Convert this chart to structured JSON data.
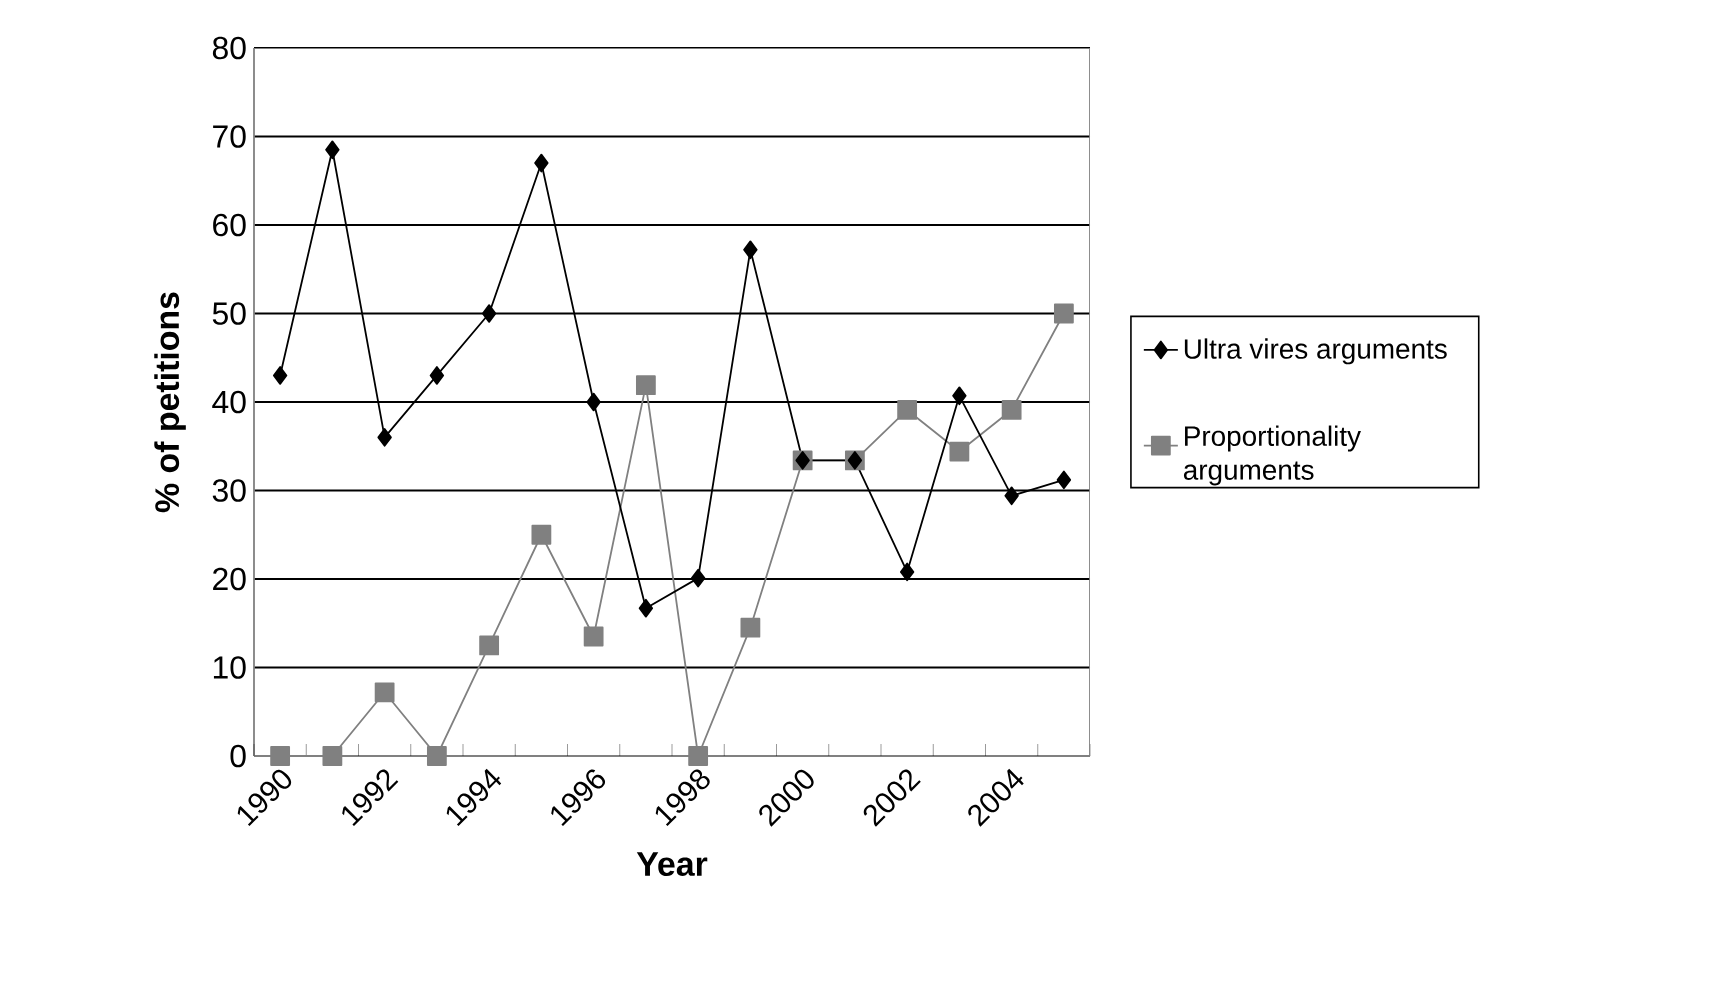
{
  "chart_data": {
    "type": "line",
    "xlabel": "Year",
    "ylabel": "% of petitions",
    "categories": [
      "1990",
      null,
      "1992",
      null,
      "1994",
      null,
      "1996",
      null,
      "1998",
      null,
      "2000",
      null,
      "2002",
      null,
      "2004",
      null
    ],
    "series": [
      {
        "name": "Ultra vires arguments",
        "color": "#000000",
        "marker": "diamond",
        "values": [
          43,
          68.5,
          36,
          43,
          50,
          67,
          40,
          16.7,
          20.1,
          57.2,
          33.4,
          33.4,
          20.8,
          40.7,
          29.4,
          31.2
        ]
      },
      {
        "name": "Proportionality arguments",
        "color": "#808080",
        "marker": "square",
        "values": [
          0,
          0,
          7.2,
          0,
          12.5,
          25,
          13.5,
          41.9,
          0,
          14.5,
          33.4,
          33.4,
          39.1,
          34.4,
          39.1,
          50
        ]
      }
    ],
    "ylim": [
      0,
      80
    ],
    "yticks": [
      0,
      10,
      20,
      30,
      40,
      50,
      60,
      70,
      80
    ],
    "grid": "y",
    "legend": "right",
    "line_style": "solid"
  }
}
